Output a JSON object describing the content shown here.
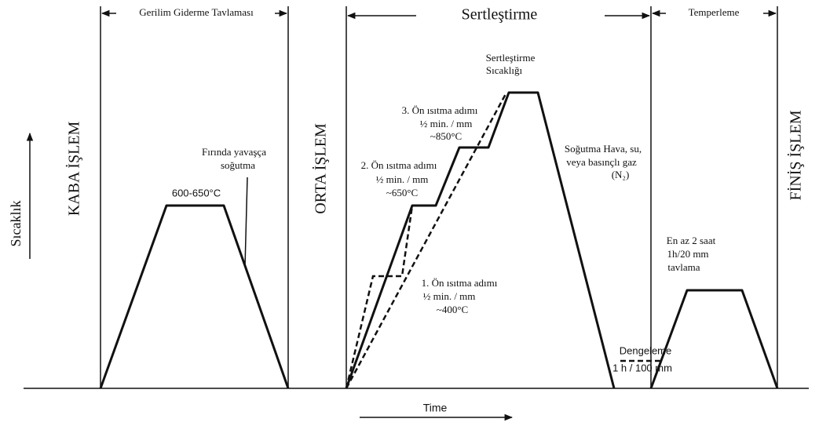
{
  "sections": {
    "stress_relief": "Gerilim Giderme Tavlaması",
    "hardening": "Sertleştirme",
    "tempering": "Temperleme"
  },
  "stages": {
    "rough": "KABA İŞLEM",
    "middle": "ORTA İŞLEM",
    "finish": "FİNİŞ İŞLEM"
  },
  "axes": {
    "y": "Sıcaklık",
    "x": "Time"
  },
  "stress_relief": {
    "temperature": "600-650°C",
    "cooling": [
      "Fırında yavaşça",
      "soğutma"
    ]
  },
  "hardening": {
    "hardening_temp": [
      "Sertleştirme",
      "Sıcaklığı"
    ],
    "step3": [
      "3. Ön ısıtma adımı",
      "½ min. / mm",
      "~850°C"
    ],
    "step2": [
      "2. Ön ısıtma adımı",
      "½ min. / mm",
      "~650°C"
    ],
    "step1": [
      "1. Ön ısıtma adımı",
      "½ min. / mm",
      "~400°C"
    ],
    "cooling": [
      "Soğutma Hava, su,",
      "veya basınçlı gaz",
      "(N₂)"
    ],
    "equalizing": [
      "Dengeleme",
      "1 h / 100 mm"
    ]
  },
  "tempering": {
    "note": [
      "En az 2 saat",
      "1h/20 mm",
      "tavlama"
    ]
  }
}
